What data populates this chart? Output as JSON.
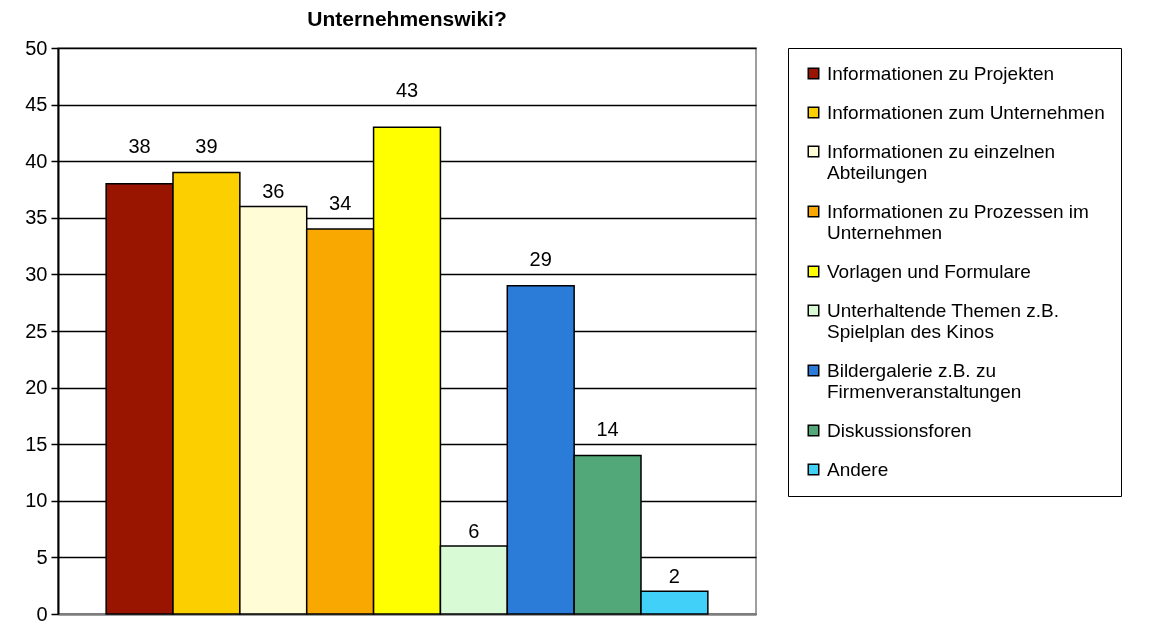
{
  "chart_data": {
    "type": "bar",
    "title": "Unternehmenswiki?",
    "categories": [
      null
    ],
    "series": [
      {
        "name": "Informationen zu Projekten",
        "color": "#991500",
        "values": [
          38
        ]
      },
      {
        "name": "Informationen zum Unternehmen",
        "color": "#fcd000",
        "values": [
          39
        ]
      },
      {
        "name": "Informationen zu einzelnen Abteilungen",
        "color": "#fffcd6",
        "values": [
          36
        ]
      },
      {
        "name": "Informationen zu Prozessen im Unternehmen",
        "color": "#f8a800",
        "values": [
          34
        ]
      },
      {
        "name": "Vorlagen und Formulare",
        "color": "#ffff00",
        "values": [
          43
        ]
      },
      {
        "name": "Unterhaltende Themen z.B. Spielplan des Kinos",
        "color": "#d8fad4",
        "values": [
          6
        ]
      },
      {
        "name": "Bildergalerie z.B. zu Firmenveranstaltungen",
        "color": "#2b7cd8",
        "values": [
          29
        ]
      },
      {
        "name": "Diskussionsforen",
        "color": "#52a878",
        "values": [
          14
        ]
      },
      {
        "name": "Andere",
        "color": "#40d0f8",
        "values": [
          2
        ]
      }
    ],
    "ylim": [
      0,
      50
    ],
    "yticks": [
      0,
      5,
      10,
      15,
      20,
      25,
      30,
      35,
      40,
      45,
      50
    ],
    "grid": "y",
    "legend": "right",
    "data_labels": true,
    "tick_labels": "y"
  }
}
